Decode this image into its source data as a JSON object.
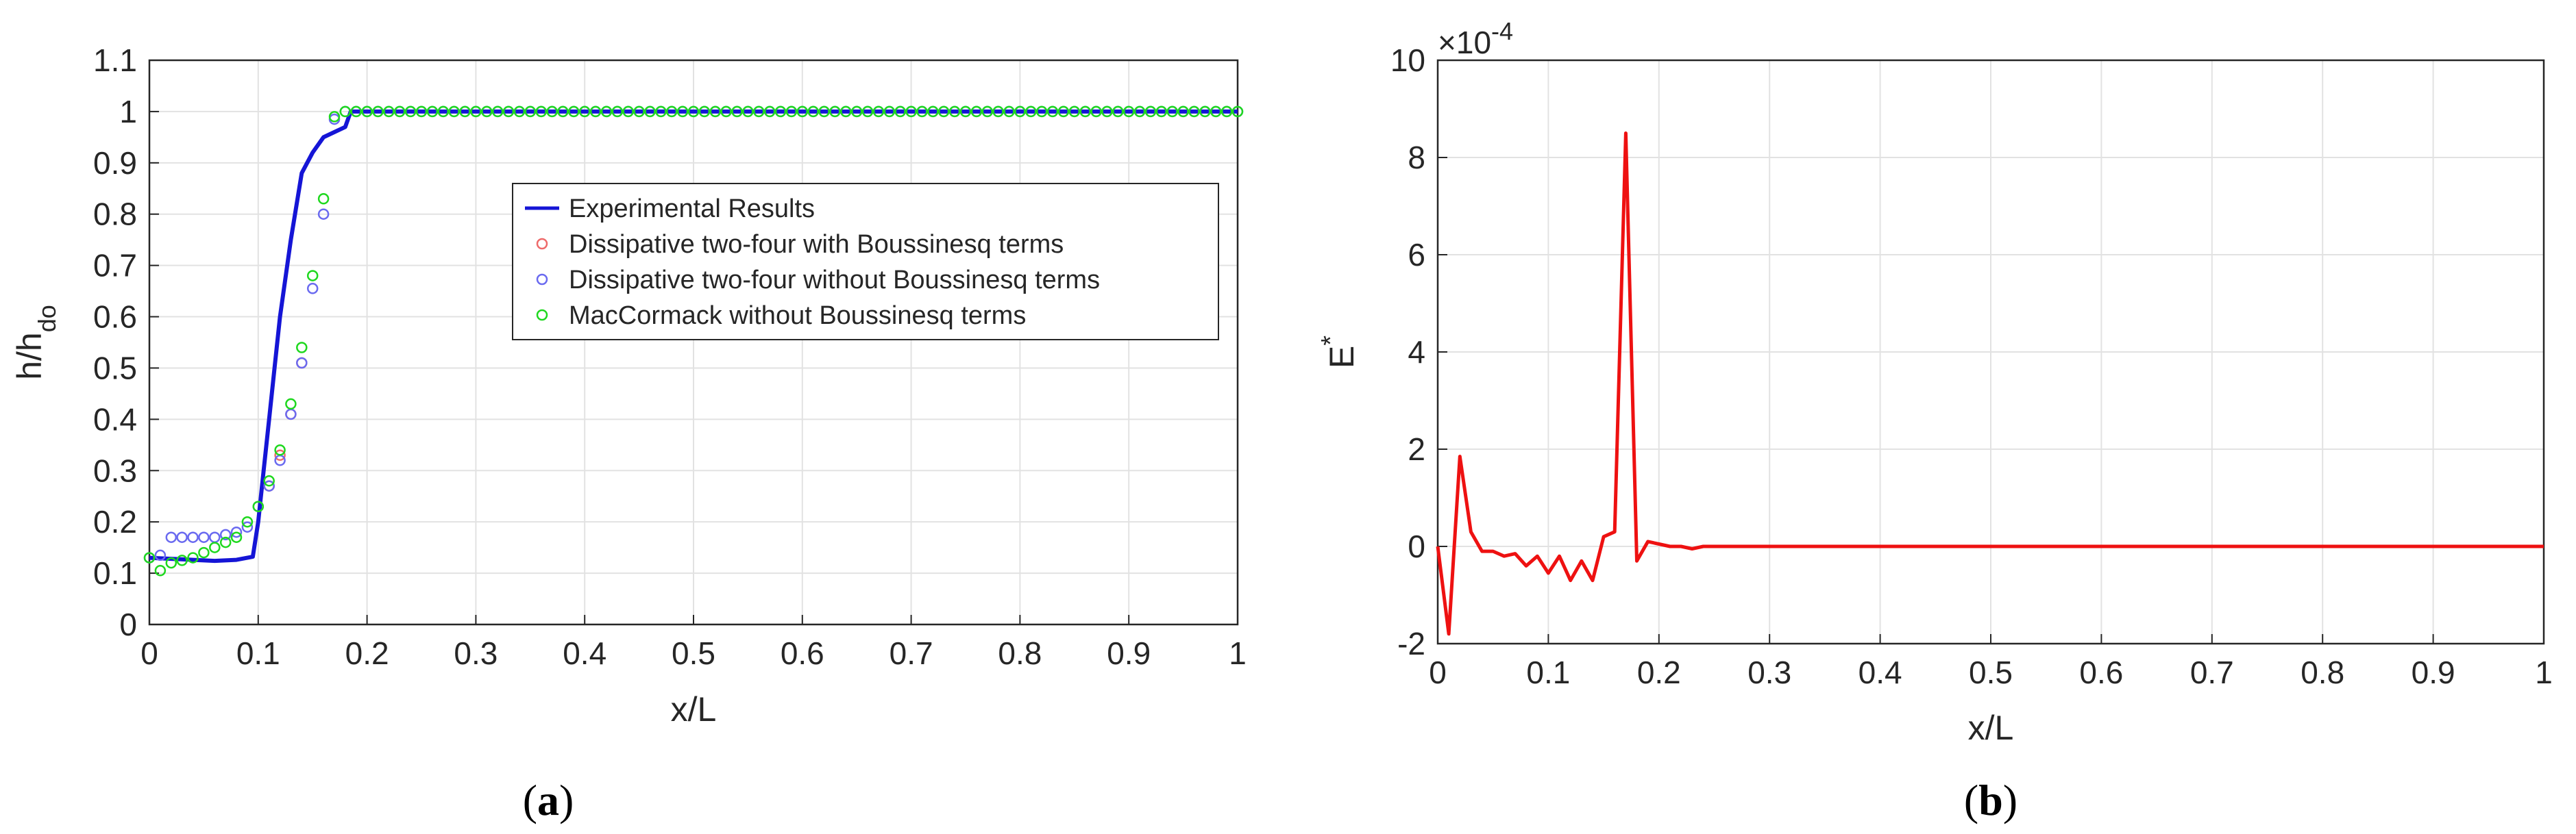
{
  "chart_data": [
    {
      "type": "line",
      "panel_label": {
        "open": "(",
        "letter": "a",
        "close": ")"
      },
      "xlabel": "x/L",
      "ylabel": {
        "base": "h/h",
        "sub": "do"
      },
      "xlim": [
        0,
        1
      ],
      "ylim": [
        0,
        1.1
      ],
      "xticks": [
        "0",
        "0.1",
        "0.2",
        "0.3",
        "0.4",
        "0.5",
        "0.6",
        "0.7",
        "0.8",
        "0.9",
        "1"
      ],
      "yticks": [
        "0",
        "0.1",
        "0.2",
        "0.3",
        "0.4",
        "0.5",
        "0.6",
        "0.7",
        "0.8",
        "0.9",
        "1",
        "1.1"
      ],
      "grid": true,
      "legend_position": "center-right",
      "series": [
        {
          "name": "Experimental Results",
          "style": "line",
          "color": "#1515d6",
          "x": [
            0,
            0.02,
            0.04,
            0.06,
            0.08,
            0.095,
            0.1,
            0.105,
            0.11,
            0.115,
            0.12,
            0.13,
            0.14,
            0.15,
            0.16,
            0.17,
            0.18,
            0.185,
            0.19,
            0.2,
            0.25,
            0.5,
            0.75,
            1.0
          ],
          "y": [
            0.13,
            0.128,
            0.126,
            0.124,
            0.126,
            0.132,
            0.2,
            0.3,
            0.4,
            0.5,
            0.6,
            0.75,
            0.88,
            0.92,
            0.95,
            0.96,
            0.97,
            1.0,
            1.0,
            1.0,
            1.0,
            1.0,
            1.0,
            1.0
          ]
        },
        {
          "name": "Dissipative two-four with Boussinesq terms",
          "style": "marker",
          "color": "#ee6a6a",
          "x": [
            0.14,
            0.13,
            0.12,
            0.11
          ],
          "y": [
            0.51,
            0.41,
            0.33,
            0.27
          ]
        },
        {
          "name": "Dissipative two-four without Boussinesq terms",
          "style": "marker",
          "color": "#6a6af0",
          "x": [
            0,
            0.01,
            0.02,
            0.03,
            0.04,
            0.05,
            0.06,
            0.07,
            0.08,
            0.09,
            0.1,
            0.11,
            0.12,
            0.13,
            0.14,
            0.15,
            0.16,
            0.17,
            0.18,
            0.19,
            0.2,
            0.21,
            0.22,
            0.23,
            0.24,
            0.25,
            0.26,
            0.27,
            0.28,
            0.29,
            0.3,
            0.31,
            0.32,
            0.33,
            0.34,
            0.35,
            0.36,
            0.37,
            0.38,
            0.39,
            0.4,
            0.41,
            0.42,
            0.43,
            0.44,
            0.45,
            0.46,
            0.47,
            0.48,
            0.49,
            0.5,
            0.51,
            0.52,
            0.53,
            0.54,
            0.55,
            0.56,
            0.57,
            0.58,
            0.59,
            0.6,
            0.61,
            0.62,
            0.63,
            0.64,
            0.65,
            0.66,
            0.67,
            0.68,
            0.69,
            0.7,
            0.71,
            0.72,
            0.73,
            0.74,
            0.75,
            0.76,
            0.77,
            0.78,
            0.79,
            0.8,
            0.81,
            0.82,
            0.83,
            0.84,
            0.85,
            0.86,
            0.87,
            0.88,
            0.89,
            0.9,
            0.91,
            0.92,
            0.93,
            0.94,
            0.95,
            0.96,
            0.97,
            0.98,
            0.99,
            1.0
          ],
          "y": [
            0.13,
            0.135,
            0.17,
            0.17,
            0.17,
            0.17,
            0.17,
            0.175,
            0.18,
            0.19,
            0.23,
            0.27,
            0.32,
            0.41,
            0.51,
            0.655,
            0.8,
            0.985,
            1.0,
            1.0,
            1.0,
            1.0,
            1.0,
            1.0,
            1.0,
            1.0,
            1.0,
            1.0,
            1.0,
            1.0,
            1.0,
            1.0,
            1.0,
            1.0,
            1.0,
            1.0,
            1.0,
            1.0,
            1.0,
            1.0,
            1.0,
            1.0,
            1.0,
            1.0,
            1.0,
            1.0,
            1.0,
            1.0,
            1.0,
            1.0,
            1.0,
            1.0,
            1.0,
            1.0,
            1.0,
            1.0,
            1.0,
            1.0,
            1.0,
            1.0,
            1.0,
            1.0,
            1.0,
            1.0,
            1.0,
            1.0,
            1.0,
            1.0,
            1.0,
            1.0,
            1.0,
            1.0,
            1.0,
            1.0,
            1.0,
            1.0,
            1.0,
            1.0,
            1.0,
            1.0,
            1.0,
            1.0,
            1.0,
            1.0,
            1.0,
            1.0,
            1.0,
            1.0,
            1.0,
            1.0,
            1.0,
            1.0,
            1.0,
            1.0,
            1.0,
            1.0,
            1.0,
            1.0,
            1.0,
            1.0,
            1.0
          ]
        },
        {
          "name": "MacCormack without Boussinesq terms",
          "style": "marker",
          "color": "#1ed81e",
          "x": [
            0,
            0.01,
            0.02,
            0.03,
            0.04,
            0.05,
            0.06,
            0.07,
            0.08,
            0.09,
            0.1,
            0.11,
            0.12,
            0.13,
            0.14,
            0.15,
            0.16,
            0.17,
            0.18,
            0.19,
            0.2,
            0.21,
            0.22,
            0.23,
            0.24,
            0.25,
            0.26,
            0.27,
            0.28,
            0.29,
            0.3,
            0.31,
            0.32,
            0.33,
            0.34,
            0.35,
            0.36,
            0.37,
            0.38,
            0.39,
            0.4,
            0.41,
            0.42,
            0.43,
            0.44,
            0.45,
            0.46,
            0.47,
            0.48,
            0.49,
            0.5,
            0.51,
            0.52,
            0.53,
            0.54,
            0.55,
            0.56,
            0.57,
            0.58,
            0.59,
            0.6,
            0.61,
            0.62,
            0.63,
            0.64,
            0.65,
            0.66,
            0.67,
            0.68,
            0.69,
            0.7,
            0.71,
            0.72,
            0.73,
            0.74,
            0.75,
            0.76,
            0.77,
            0.78,
            0.79,
            0.8,
            0.81,
            0.82,
            0.83,
            0.84,
            0.85,
            0.86,
            0.87,
            0.88,
            0.89,
            0.9,
            0.91,
            0.92,
            0.93,
            0.94,
            0.95,
            0.96,
            0.97,
            0.98,
            0.99,
            1.0
          ],
          "y": [
            0.13,
            0.105,
            0.12,
            0.125,
            0.13,
            0.14,
            0.15,
            0.16,
            0.17,
            0.2,
            0.23,
            0.28,
            0.34,
            0.43,
            0.54,
            0.68,
            0.83,
            0.99,
            1.0,
            1.0,
            1.0,
            1.0,
            1.0,
            1.0,
            1.0,
            1.0,
            1.0,
            1.0,
            1.0,
            1.0,
            1.0,
            1.0,
            1.0,
            1.0,
            1.0,
            1.0,
            1.0,
            1.0,
            1.0,
            1.0,
            1.0,
            1.0,
            1.0,
            1.0,
            1.0,
            1.0,
            1.0,
            1.0,
            1.0,
            1.0,
            1.0,
            1.0,
            1.0,
            1.0,
            1.0,
            1.0,
            1.0,
            1.0,
            1.0,
            1.0,
            1.0,
            1.0,
            1.0,
            1.0,
            1.0,
            1.0,
            1.0,
            1.0,
            1.0,
            1.0,
            1.0,
            1.0,
            1.0,
            1.0,
            1.0,
            1.0,
            1.0,
            1.0,
            1.0,
            1.0,
            1.0,
            1.0,
            1.0,
            1.0,
            1.0,
            1.0,
            1.0,
            1.0,
            1.0,
            1.0,
            1.0,
            1.0,
            1.0,
            1.0,
            1.0,
            1.0,
            1.0,
            1.0,
            1.0,
            1.0,
            1.0
          ]
        }
      ]
    },
    {
      "type": "line",
      "panel_label": {
        "open": "(",
        "letter": "b",
        "close": ")"
      },
      "xlabel": "x/L",
      "ylabel": {
        "base": "E",
        "sup": "*"
      },
      "exponent_label": {
        "prefix": "×10",
        "sup": "-4"
      },
      "xlim": [
        0,
        1
      ],
      "ylim": [
        -2,
        10
      ],
      "xticks": [
        "0",
        "0.1",
        "0.2",
        "0.3",
        "0.4",
        "0.5",
        "0.6",
        "0.7",
        "0.8",
        "0.9",
        "1"
      ],
      "yticks": [
        "-2",
        "0",
        "2",
        "4",
        "6",
        "8",
        "10"
      ],
      "grid": true,
      "series": [
        {
          "name": "",
          "style": "line",
          "color": "#ee1111",
          "x": [
            0,
            0.01,
            0.02,
            0.03,
            0.04,
            0.05,
            0.06,
            0.07,
            0.08,
            0.09,
            0.1,
            0.11,
            0.12,
            0.13,
            0.14,
            0.15,
            0.16,
            0.17,
            0.18,
            0.19,
            0.2,
            0.21,
            0.22,
            0.23,
            0.24,
            0.3,
            0.5,
            0.75,
            1.0
          ],
          "y": [
            0,
            -1.8,
            1.85,
            0.3,
            -0.1,
            -0.1,
            -0.2,
            -0.15,
            -0.4,
            -0.2,
            -0.55,
            -0.2,
            -0.7,
            -0.3,
            -0.7,
            0.2,
            0.3,
            8.5,
            -0.3,
            0.1,
            0.05,
            0.0,
            0.0,
            -0.05,
            0.0,
            0.0,
            0.0,
            0.0,
            0.0
          ]
        }
      ]
    }
  ]
}
